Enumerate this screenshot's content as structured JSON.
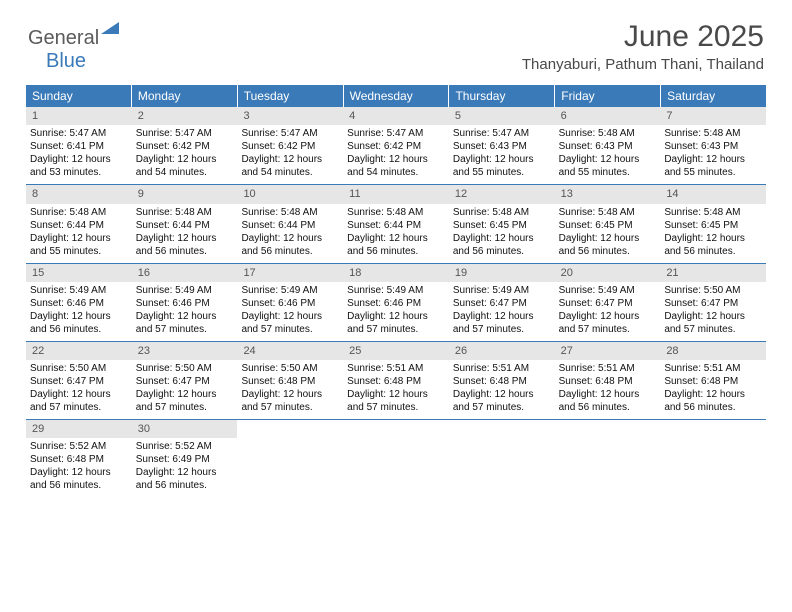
{
  "brand": {
    "part1": "General",
    "part2": "Blue"
  },
  "title": "June 2025",
  "location": "Thanyaburi, Pathum Thani, Thailand",
  "header_bg": "#3a7ab8",
  "header_fg": "#ffffff",
  "daynum_bg": "#e6e6e6",
  "daynum_fg": "#555555",
  "border_color": "#3a7ab8",
  "text_color": "#111111",
  "title_color": "#494949",
  "days_of_week": [
    "Sunday",
    "Monday",
    "Tuesday",
    "Wednesday",
    "Thursday",
    "Friday",
    "Saturday"
  ],
  "weeks": [
    [
      {
        "n": "1",
        "sunrise": "5:47 AM",
        "sunset": "6:41 PM",
        "daylight": "12 hours and 53 minutes."
      },
      {
        "n": "2",
        "sunrise": "5:47 AM",
        "sunset": "6:42 PM",
        "daylight": "12 hours and 54 minutes."
      },
      {
        "n": "3",
        "sunrise": "5:47 AM",
        "sunset": "6:42 PM",
        "daylight": "12 hours and 54 minutes."
      },
      {
        "n": "4",
        "sunrise": "5:47 AM",
        "sunset": "6:42 PM",
        "daylight": "12 hours and 54 minutes."
      },
      {
        "n": "5",
        "sunrise": "5:47 AM",
        "sunset": "6:43 PM",
        "daylight": "12 hours and 55 minutes."
      },
      {
        "n": "6",
        "sunrise": "5:48 AM",
        "sunset": "6:43 PM",
        "daylight": "12 hours and 55 minutes."
      },
      {
        "n": "7",
        "sunrise": "5:48 AM",
        "sunset": "6:43 PM",
        "daylight": "12 hours and 55 minutes."
      }
    ],
    [
      {
        "n": "8",
        "sunrise": "5:48 AM",
        "sunset": "6:44 PM",
        "daylight": "12 hours and 55 minutes."
      },
      {
        "n": "9",
        "sunrise": "5:48 AM",
        "sunset": "6:44 PM",
        "daylight": "12 hours and 56 minutes."
      },
      {
        "n": "10",
        "sunrise": "5:48 AM",
        "sunset": "6:44 PM",
        "daylight": "12 hours and 56 minutes."
      },
      {
        "n": "11",
        "sunrise": "5:48 AM",
        "sunset": "6:44 PM",
        "daylight": "12 hours and 56 minutes."
      },
      {
        "n": "12",
        "sunrise": "5:48 AM",
        "sunset": "6:45 PM",
        "daylight": "12 hours and 56 minutes."
      },
      {
        "n": "13",
        "sunrise": "5:48 AM",
        "sunset": "6:45 PM",
        "daylight": "12 hours and 56 minutes."
      },
      {
        "n": "14",
        "sunrise": "5:48 AM",
        "sunset": "6:45 PM",
        "daylight": "12 hours and 56 minutes."
      }
    ],
    [
      {
        "n": "15",
        "sunrise": "5:49 AM",
        "sunset": "6:46 PM",
        "daylight": "12 hours and 56 minutes."
      },
      {
        "n": "16",
        "sunrise": "5:49 AM",
        "sunset": "6:46 PM",
        "daylight": "12 hours and 57 minutes."
      },
      {
        "n": "17",
        "sunrise": "5:49 AM",
        "sunset": "6:46 PM",
        "daylight": "12 hours and 57 minutes."
      },
      {
        "n": "18",
        "sunrise": "5:49 AM",
        "sunset": "6:46 PM",
        "daylight": "12 hours and 57 minutes."
      },
      {
        "n": "19",
        "sunrise": "5:49 AM",
        "sunset": "6:47 PM",
        "daylight": "12 hours and 57 minutes."
      },
      {
        "n": "20",
        "sunrise": "5:49 AM",
        "sunset": "6:47 PM",
        "daylight": "12 hours and 57 minutes."
      },
      {
        "n": "21",
        "sunrise": "5:50 AM",
        "sunset": "6:47 PM",
        "daylight": "12 hours and 57 minutes."
      }
    ],
    [
      {
        "n": "22",
        "sunrise": "5:50 AM",
        "sunset": "6:47 PM",
        "daylight": "12 hours and 57 minutes."
      },
      {
        "n": "23",
        "sunrise": "5:50 AM",
        "sunset": "6:47 PM",
        "daylight": "12 hours and 57 minutes."
      },
      {
        "n": "24",
        "sunrise": "5:50 AM",
        "sunset": "6:48 PM",
        "daylight": "12 hours and 57 minutes."
      },
      {
        "n": "25",
        "sunrise": "5:51 AM",
        "sunset": "6:48 PM",
        "daylight": "12 hours and 57 minutes."
      },
      {
        "n": "26",
        "sunrise": "5:51 AM",
        "sunset": "6:48 PM",
        "daylight": "12 hours and 57 minutes."
      },
      {
        "n": "27",
        "sunrise": "5:51 AM",
        "sunset": "6:48 PM",
        "daylight": "12 hours and 56 minutes."
      },
      {
        "n": "28",
        "sunrise": "5:51 AM",
        "sunset": "6:48 PM",
        "daylight": "12 hours and 56 minutes."
      }
    ],
    [
      {
        "n": "29",
        "sunrise": "5:52 AM",
        "sunset": "6:48 PM",
        "daylight": "12 hours and 56 minutes."
      },
      {
        "n": "30",
        "sunrise": "5:52 AM",
        "sunset": "6:49 PM",
        "daylight": "12 hours and 56 minutes."
      },
      null,
      null,
      null,
      null,
      null
    ]
  ],
  "labels": {
    "sunrise": "Sunrise:",
    "sunset": "Sunset:",
    "daylight": "Daylight:"
  }
}
